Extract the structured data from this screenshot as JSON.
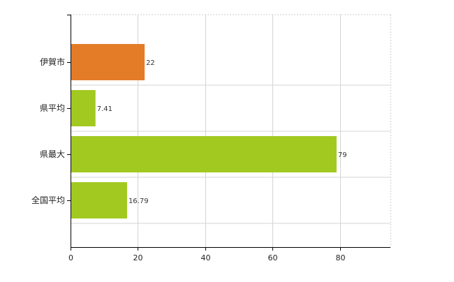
{
  "chart_data": {
    "type": "bar",
    "orientation": "horizontal",
    "categories": [
      "伊賀市",
      "県平均",
      "県最大",
      "全国平均"
    ],
    "values": [
      22,
      7.41,
      79,
      16.79
    ],
    "data_labels": [
      "22",
      "7.41",
      "79",
      "16.79"
    ],
    "colors": [
      "#e47c27",
      "#a1c920",
      "#a1c920",
      "#a1c920"
    ],
    "x_ticks": [
      0,
      20,
      40,
      60,
      80
    ],
    "xlim": [
      0,
      95
    ],
    "title": "",
    "xlabel": "",
    "ylabel": "",
    "grid": true,
    "legend": "none"
  }
}
